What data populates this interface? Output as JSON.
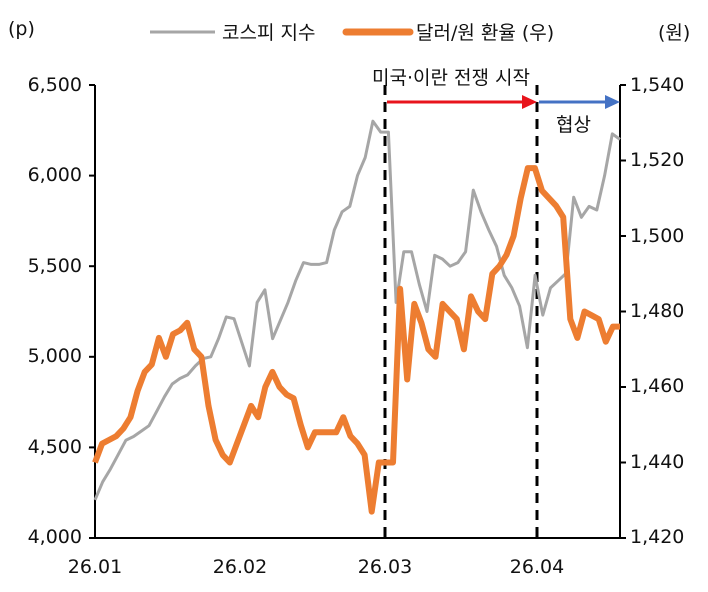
{
  "chart_data": {
    "type": "line",
    "title": "",
    "left_axis": {
      "unit_label": "(p)",
      "ticks": [
        "4,000",
        "4,500",
        "5,000",
        "5,500",
        "6,000",
        "6,500"
      ],
      "ylim": [
        4000,
        6500
      ]
    },
    "right_axis": {
      "unit_label": "(원)",
      "ticks": [
        "1,420",
        "1,440",
        "1,460",
        "1,480",
        "1,500",
        "1,520",
        "1,540"
      ],
      "ylim": [
        1420,
        1540
      ]
    },
    "x_ticks": [
      "26.01",
      "26.02",
      "26.03",
      "26.04"
    ],
    "legend": [
      "코스피 지수",
      "달러/원 환율 (우)"
    ],
    "annotations": [
      {
        "text": "미국·이란 전쟁 시작",
        "from": "26.03",
        "to": "26.04",
        "color": "#e8141c"
      },
      {
        "text": "협상",
        "from": "26.04",
        "to": "end",
        "color": "#4472c4"
      }
    ],
    "series": [
      {
        "name": "코스피 지수",
        "axis": "left",
        "color": "#a6a6a6",
        "values": [
          4210,
          4310,
          4380,
          4460,
          4540,
          4560,
          4590,
          4620,
          4700,
          4780,
          4850,
          4880,
          4900,
          4950,
          4990,
          5000,
          5100,
          5220,
          5210,
          5080,
          4950,
          5300,
          5370,
          5100,
          5200,
          5300,
          5420,
          5520,
          5510,
          5510,
          5520,
          5700,
          5800,
          5830,
          6000,
          6100,
          6300,
          6240,
          6240,
          5300,
          5580,
          5580,
          5400,
          5250,
          5560,
          5540,
          5500,
          5520,
          5580,
          5920,
          5800,
          5700,
          5610,
          5450,
          5380,
          5280,
          5050,
          5450,
          5230,
          5380,
          5420,
          5460,
          5880,
          5770,
          5830,
          5810,
          6000,
          6230,
          6200
        ]
      },
      {
        "name": "달러/원 환율 (우)",
        "axis": "right",
        "color": "#ed7d31",
        "values": [
          1440,
          1445,
          1446,
          1447,
          1449,
          1452,
          1459,
          1464,
          1466,
          1473,
          1468,
          1474,
          1475,
          1477,
          1470,
          1468,
          1455,
          1446,
          1442,
          1440,
          1445,
          1450,
          1455,
          1452,
          1460,
          1464,
          1460,
          1458,
          1457,
          1450,
          1444,
          1448,
          1448,
          1448,
          1448,
          1452,
          1447,
          1445,
          1442,
          1427,
          1440,
          1440,
          1440,
          1486,
          1462,
          1482,
          1477,
          1470,
          1468,
          1482,
          1480,
          1478,
          1470,
          1484,
          1480,
          1478,
          1490,
          1492,
          1495,
          1500,
          1510,
          1518,
          1518,
          1512,
          1510,
          1508,
          1505,
          1478,
          1473,
          1480,
          1479,
          1478,
          1472,
          1476,
          1476
        ]
      }
    ]
  }
}
